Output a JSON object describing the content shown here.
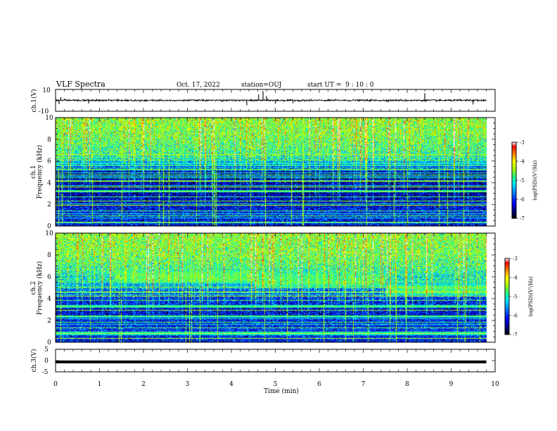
{
  "header": {
    "title": "VLF Spectra",
    "date": "Oct. 17, 2022",
    "station": "station=OUJ",
    "start": "start UT =  9 : 10 : 0"
  },
  "colors": {
    "background": "#ffffff",
    "ink": "#000000",
    "colormap": [
      "#000000",
      "#00008b",
      "#0000ff",
      "#0090ff",
      "#00e0ff",
      "#30ff80",
      "#b0ff00",
      "#ffff00",
      "#ff8000",
      "#ff0000",
      "#ffffff"
    ]
  },
  "chart_data": [
    {
      "type": "line",
      "name": "ch1-waveform",
      "ylabel": "ch.1(V)",
      "ylim": [
        -10,
        10
      ],
      "yticks": [
        "10",
        "-10"
      ],
      "xlim": [
        0,
        10
      ],
      "baseline": 0,
      "noise_amplitude": 0.8,
      "spikes": [
        {
          "t": 0.08,
          "v": -3.5
        },
        {
          "t": 0.12,
          "v": 3.0
        },
        {
          "t": 0.75,
          "v": -2.8
        },
        {
          "t": 4.35,
          "v": -4.5
        },
        {
          "t": 4.62,
          "v": 5.5
        },
        {
          "t": 4.72,
          "v": 8.5
        },
        {
          "t": 4.8,
          "v": 4.0
        },
        {
          "t": 5.0,
          "v": -3.0
        },
        {
          "t": 5.4,
          "v": -2.6
        },
        {
          "t": 8.4,
          "v": 6.5
        },
        {
          "t": 9.5,
          "v": -3.8
        }
      ]
    },
    {
      "type": "heatmap",
      "name": "ch1-spectrogram",
      "ylabel": "Frequency (kHz)",
      "channel_label": "ch.1",
      "xlim": [
        0,
        10
      ],
      "ylim": [
        0,
        10
      ],
      "yticks": [
        "0",
        "2",
        "4",
        "6",
        "8",
        "10"
      ],
      "data_end_min": 9.8,
      "background_log_psd": [
        {
          "f": 0,
          "v": -6.2
        },
        {
          "f": 1,
          "v": -6.1
        },
        {
          "f": 3,
          "v": -6.5
        },
        {
          "f": 5,
          "v": -6.4
        },
        {
          "f": 5.8,
          "v": -5.6
        },
        {
          "f": 6.3,
          "v": -5.0
        },
        {
          "f": 7.2,
          "v": -4.8
        },
        {
          "f": 8.5,
          "v": -4.6
        },
        {
          "f": 10,
          "v": -4.5
        }
      ],
      "emission_bands": [],
      "narrowband_lines_khz": [
        0.3,
        0.9,
        1.4,
        1.9,
        2.3,
        2.7,
        3.2,
        3.6,
        4.1,
        4.7,
        5.2,
        5.6,
        6.1,
        6.6
      ],
      "colorbar": {
        "label": "log(PSD)(V²/Hz)",
        "ticks": [
          "-3",
          "-4",
          "-5",
          "-6",
          "-7"
        ],
        "range": [
          -7,
          -3
        ]
      }
    },
    {
      "type": "heatmap",
      "name": "ch2-spectrogram",
      "ylabel": "Frequency (kHz)",
      "channel_label": "ch.2",
      "xlim": [
        0,
        10
      ],
      "ylim": [
        0,
        10
      ],
      "yticks": [
        "0",
        "2",
        "4",
        "6",
        "8",
        "10"
      ],
      "data_end_min": 9.8,
      "background_log_psd": [
        {
          "f": 0,
          "v": -6.1
        },
        {
          "f": 1,
          "v": -6.0
        },
        {
          "f": 3,
          "v": -6.3
        },
        {
          "f": 4.5,
          "v": -5.9
        },
        {
          "f": 5.5,
          "v": -5.3
        },
        {
          "f": 6.5,
          "v": -4.9
        },
        {
          "f": 8,
          "v": -4.6
        },
        {
          "f": 10,
          "v": -4.5
        }
      ],
      "emission_bands": [
        {
          "t_start": 1.35,
          "t_end": 4.5,
          "f_low": 5.6,
          "f_high": 6.4,
          "log_psd": -4.7
        },
        {
          "t_start": 4.5,
          "t_end": 7.5,
          "f_low": 5.2,
          "f_high": 6.2,
          "log_psd": -4.8
        },
        {
          "t_start": 7.5,
          "t_end": 9.8,
          "f_low": 4.4,
          "f_high": 5.2,
          "log_psd": -4.8
        }
      ],
      "narrowband_lines_khz": [
        0.3,
        0.8,
        1.3,
        1.8,
        2.4,
        2.9,
        3.3,
        3.8,
        4.2,
        4.6,
        5.0,
        5.5
      ],
      "colorbar": {
        "label": "log(PSD)(V²/Hz)",
        "ticks": [
          "-3",
          "-4",
          "-5",
          "-6",
          "-7"
        ],
        "range": [
          -7,
          -3
        ]
      }
    },
    {
      "type": "line",
      "name": "ch3-waveform",
      "ylabel": "ch.3(V)",
      "ylim": [
        -5,
        5
      ],
      "yticks": [
        "5",
        "0",
        "-5"
      ],
      "xlim": [
        0,
        10
      ],
      "baseline": -0.6,
      "noise_amplitude": 0.0,
      "spikes": []
    }
  ],
  "xaxis": {
    "label": "Time (min)",
    "ticks": [
      "0",
      "1",
      "2",
      "3",
      "4",
      "5",
      "6",
      "7",
      "8",
      "9",
      "10"
    ],
    "range": [
      0,
      10
    ]
  }
}
